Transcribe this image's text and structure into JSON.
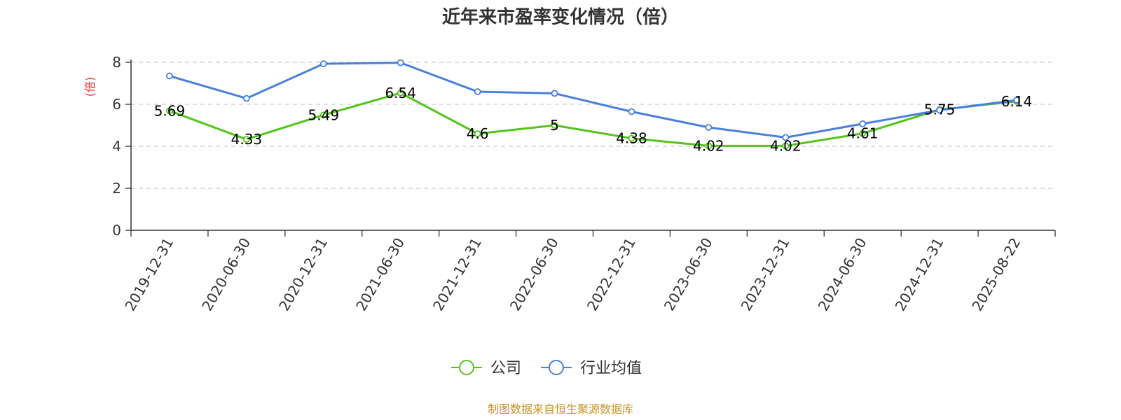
{
  "chart_data": {
    "type": "line",
    "title": "近年来市盈率变化情况（倍）",
    "ylabel": "(倍)",
    "xlabel": "",
    "ylim": [
      0,
      8
    ],
    "yticks": [
      0,
      2,
      4,
      6,
      8
    ],
    "grid": true,
    "legend_position": "bottom-center",
    "categories": [
      "2019-12-31",
      "2020-06-30",
      "2020-12-31",
      "2021-06-30",
      "2021-12-31",
      "2022-06-30",
      "2022-12-31",
      "2023-06-30",
      "2023-12-31",
      "2024-06-30",
      "2024-12-31",
      "2025-08-22"
    ],
    "series": [
      {
        "name": "公司",
        "color": "#52c41a",
        "values": [
          5.69,
          4.33,
          5.49,
          6.54,
          4.6,
          5,
          4.38,
          4.02,
          4.02,
          4.61,
          5.75,
          6.14
        ],
        "labels": [
          "5.69",
          "4.33",
          "5.49",
          "6.54",
          "4.6",
          "5",
          "4.38",
          "4.02",
          "4.02",
          "4.61",
          "5.75",
          "6.14"
        ]
      },
      {
        "name": "行业均值",
        "color": "#4a7fdc",
        "values": [
          7.35,
          6.28,
          7.93,
          7.98,
          6.6,
          6.52,
          5.65,
          4.9,
          4.42,
          5.07,
          5.72,
          6.2
        ]
      }
    ],
    "ylabel_color": "#e8332a",
    "source": "制图数据来自恒生聚源数据库",
    "source_color": "#c8922a"
  }
}
